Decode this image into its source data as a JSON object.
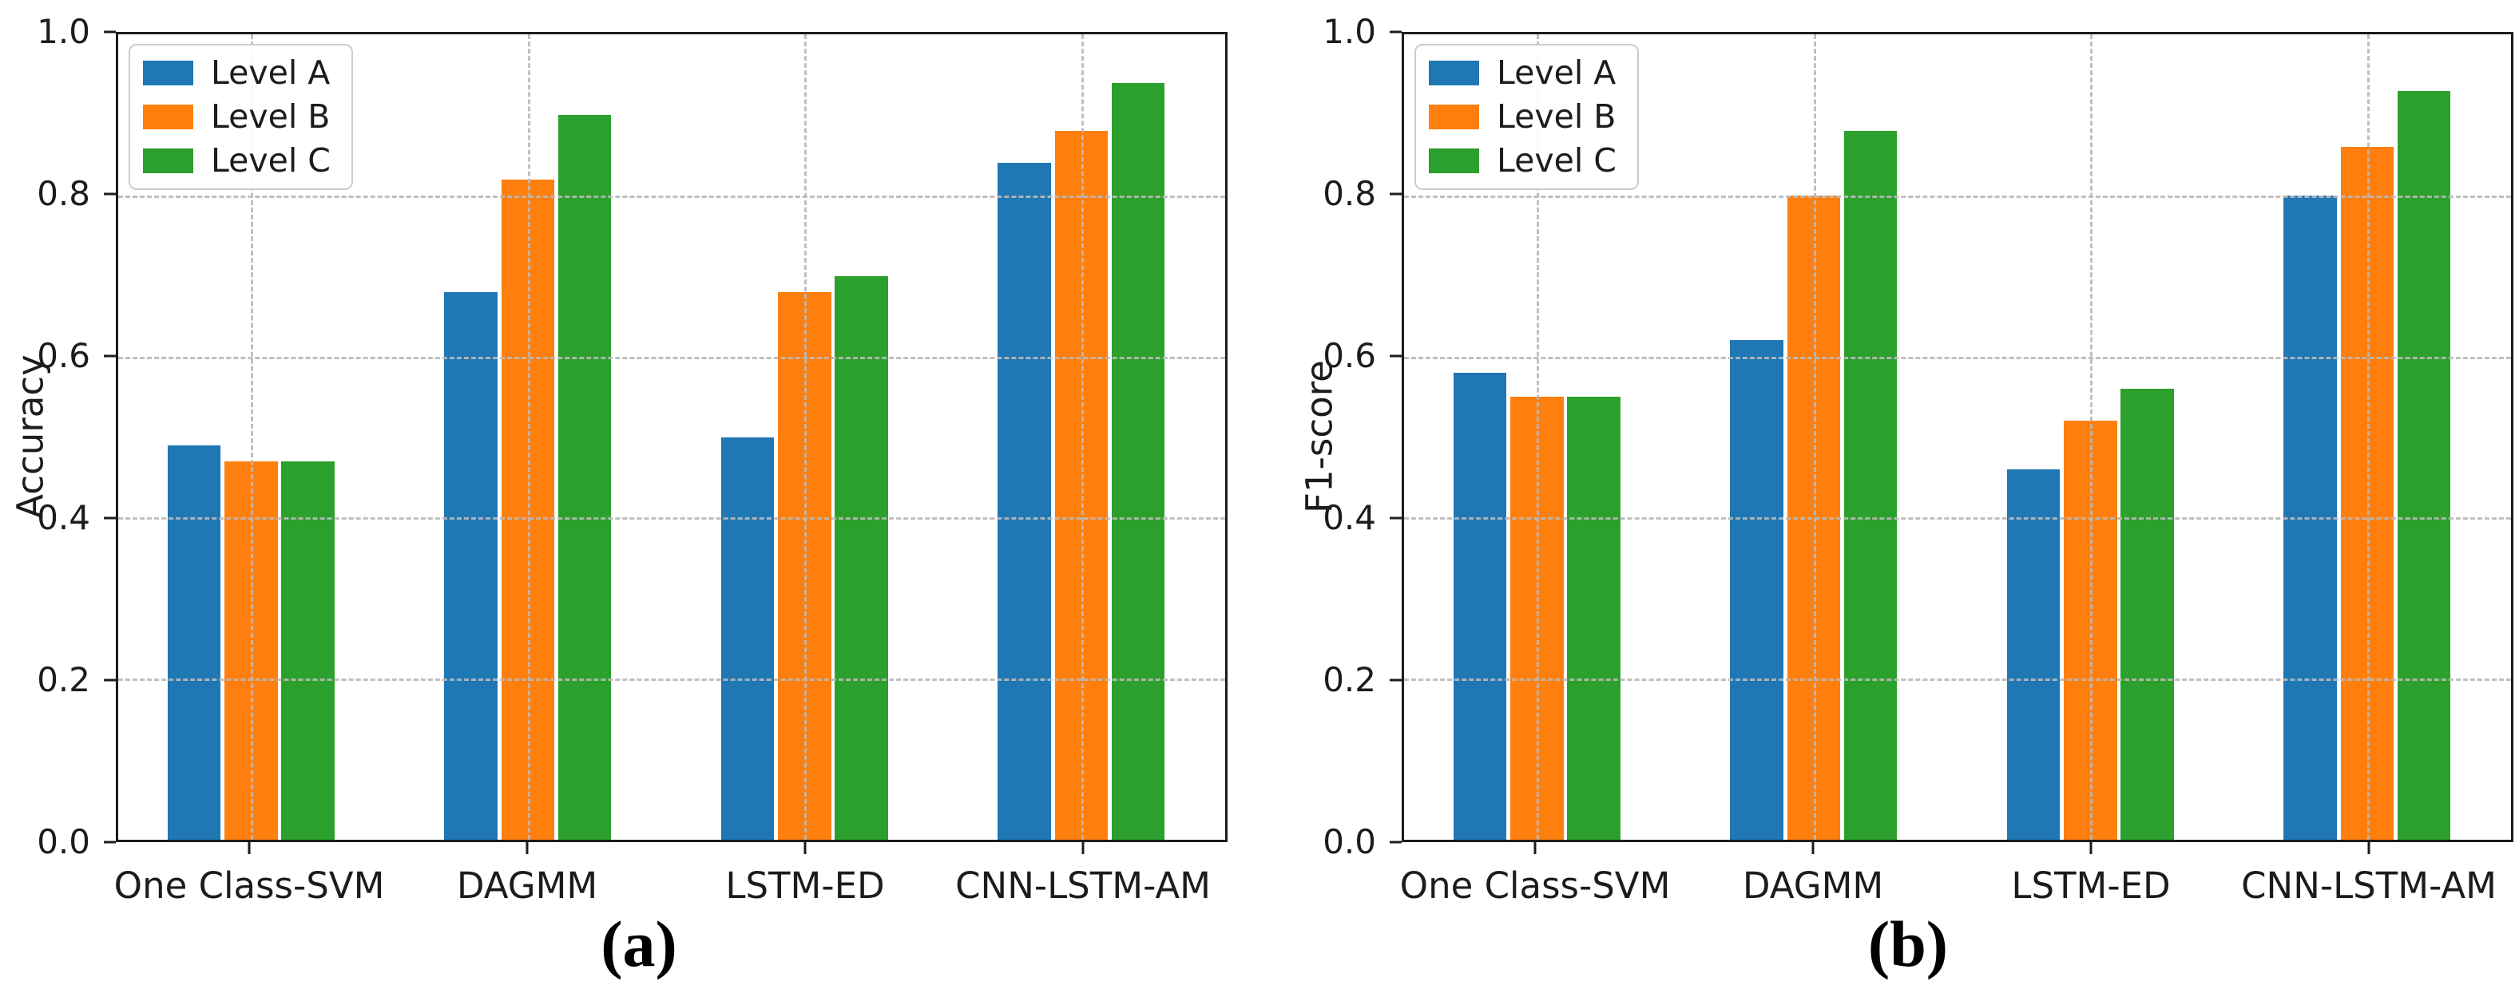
{
  "accent_colors": {
    "level_a": "#1f77b4",
    "level_b": "#ff7f0e",
    "level_c": "#2ca02c",
    "spine": "#1c1c1c",
    "gridline": "#b9b9b9"
  },
  "chart_data": [
    {
      "type": "bar",
      "title": "",
      "ylabel": "Accuracy",
      "xlabel": "",
      "caption": "(a)",
      "categories": [
        "One Class-SVM",
        "DAGMM",
        "LSTM-ED",
        "CNN-LSTM-AM"
      ],
      "series": [
        {
          "name": "Level A",
          "color": "#1f77b4",
          "values": [
            0.49,
            0.68,
            0.5,
            0.84
          ]
        },
        {
          "name": "Level B",
          "color": "#ff7f0e",
          "values": [
            0.47,
            0.82,
            0.68,
            0.88
          ]
        },
        {
          "name": "Level C",
          "color": "#2ca02c",
          "values": [
            0.47,
            0.9,
            0.7,
            0.94
          ]
        }
      ],
      "ylim": [
        0.0,
        1.0
      ],
      "yticks": [
        "0.0",
        "0.2",
        "0.4",
        "0.6",
        "0.8",
        "1.0"
      ],
      "grid": true,
      "grid_style": "dashed",
      "legend_position": "upper left",
      "legend_labels": [
        "Level A",
        "Level B",
        "Level C"
      ]
    },
    {
      "type": "bar",
      "title": "",
      "ylabel": "F1-score",
      "xlabel": "",
      "caption": "(b)",
      "categories": [
        "One Class-SVM",
        "DAGMM",
        "LSTM-ED",
        "CNN-LSTM-AM"
      ],
      "series": [
        {
          "name": "Level A",
          "color": "#1f77b4",
          "values": [
            0.58,
            0.62,
            0.46,
            0.8
          ]
        },
        {
          "name": "Level B",
          "color": "#ff7f0e",
          "values": [
            0.55,
            0.8,
            0.52,
            0.86
          ]
        },
        {
          "name": "Level C",
          "color": "#2ca02c",
          "values": [
            0.55,
            0.88,
            0.56,
            0.93
          ]
        }
      ],
      "ylim": [
        0.0,
        1.0
      ],
      "yticks": [
        "0.0",
        "0.2",
        "0.4",
        "0.6",
        "0.8",
        "1.0"
      ],
      "grid": true,
      "grid_style": "dashed",
      "legend_position": "upper left",
      "legend_labels": [
        "Level A",
        "Level B",
        "Level C"
      ]
    }
  ]
}
